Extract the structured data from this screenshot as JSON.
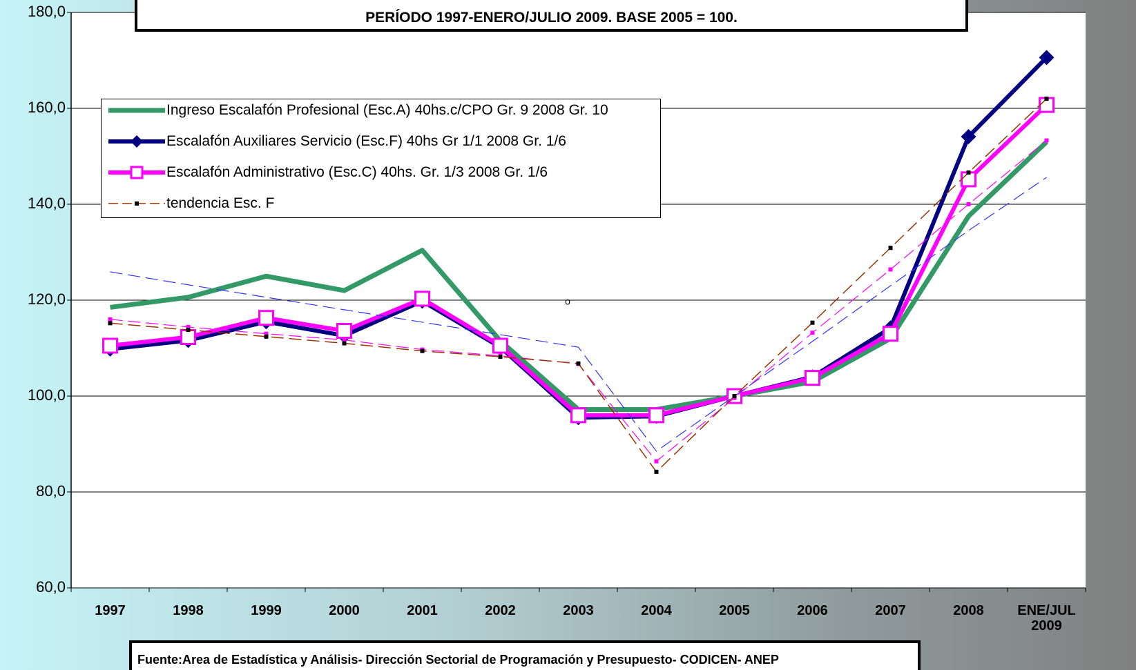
{
  "chart_data": {
    "type": "line",
    "title": "PERÍODO 1997-ENERO/JULIO 2009. BASE 2005 = 100.",
    "source": "Fuente:Area de Estadística y Análisis- Dirección Sectorial de Programación y Presupuesto- CODICEN- ANEP",
    "annotation": "o",
    "categories": [
      "1997",
      "1998",
      "1999",
      "2000",
      "2001",
      "2002",
      "2003",
      "2004",
      "2005",
      "2006",
      "2007",
      "2008",
      "ENE/JUL 2009"
    ],
    "ylim": [
      60,
      180
    ],
    "yticks": [
      {
        "value": 60,
        "label": "60,0"
      },
      {
        "value": 80,
        "label": "80,0"
      },
      {
        "value": 100,
        "label": "100,0"
      },
      {
        "value": 120,
        "label": "120,0"
      },
      {
        "value": 140,
        "label": "140,0"
      },
      {
        "value": 160,
        "label": "160,0"
      },
      {
        "value": 180,
        "label": "180,0"
      }
    ],
    "grid": true,
    "legend": "upper left",
    "series": [
      {
        "name": "Ingreso Escalafón Profesional (Esc.A) 40hs.c/CPO Gr. 9 2008 Gr. 10",
        "color": "#339966",
        "width": 7,
        "marker": "none",
        "values": [
          118.5,
          120.6,
          125,
          122,
          130.4,
          111.5,
          97.2,
          97.2,
          100,
          103,
          112,
          137.5,
          153
        ]
      },
      {
        "name": "Escalafón Auxiliares Servicio (Esc.F) 40hs Gr 1/1 2008 Gr. 1/6",
        "color": "#000080",
        "width": 6,
        "marker": "diamond",
        "values": [
          109.8,
          111.6,
          115.5,
          112.6,
          119.8,
          110.2,
          95.5,
          95.8,
          100,
          104,
          114.2,
          154.1,
          170.6
        ]
      },
      {
        "name": "Escalafón Administrativo (Esc.C) 40hs. Gr. 1/3 2008 Gr. 1/6",
        "color": "#ff00ff",
        "width": 6,
        "marker": "square",
        "values": [
          110.5,
          112.3,
          116.3,
          113.6,
          120.3,
          110.5,
          96,
          96,
          100,
          103.8,
          113,
          145.2,
          160.7
        ]
      },
      {
        "color": "#3333ff",
        "width": 1.2,
        "marker": "none",
        "dash": true,
        "values": [
          125.9,
          123.2,
          120.6,
          118,
          115.4,
          112.8,
          110.2,
          88.5,
          100,
          111.4,
          123,
          134.5,
          145.6
        ]
      },
      {
        "color": "#ff00ff",
        "width": 1.2,
        "marker": "small",
        "dash": true,
        "values": [
          116,
          114.4,
          113,
          111.7,
          109.7,
          108.4,
          106.7,
          86.4,
          99.6,
          113.2,
          126.4,
          140,
          153.3
        ]
      },
      {
        "name": "tendencia Esc. F",
        "color": "#993300",
        "width": 1.5,
        "marker": "small-black",
        "dash": true,
        "values": [
          115.2,
          113.8,
          112.4,
          111,
          109.4,
          108.2,
          106.8,
          84.2,
          100,
          115.3,
          130.9,
          146.6,
          162
        ]
      }
    ]
  }
}
